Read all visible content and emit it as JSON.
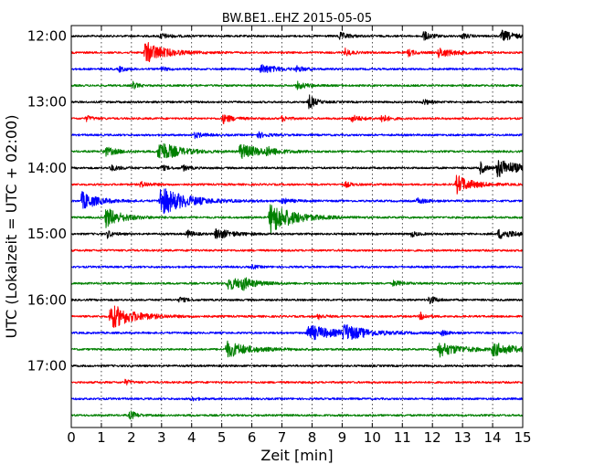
{
  "chart_data": {
    "type": "line",
    "subtype": "helicorder-dayplot",
    "title": "BW.BE1..EHZ 2015-05-05",
    "xlabel": "Zeit  [min]",
    "ylabel": "UTC (Lokalzeit = UTC + 02:00)",
    "xlim": [
      0,
      15
    ],
    "x_ticks": [
      "0",
      "1",
      "2",
      "3",
      "4",
      "5",
      "6",
      "7",
      "8",
      "9",
      "10",
      "11",
      "12",
      "13",
      "14",
      "15"
    ],
    "y_ticks": [
      {
        "label": "12:00",
        "row": 0
      },
      {
        "label": "13:00",
        "row": 4
      },
      {
        "label": "14:00",
        "row": 8
      },
      {
        "label": "15:00",
        "row": 12
      },
      {
        "label": "16:00",
        "row": 16
      },
      {
        "label": "17:00",
        "row": 20
      }
    ],
    "grid": {
      "vertical_dotted": true
    },
    "row_colors": [
      "#000000",
      "#ff0000",
      "#0000ff",
      "#008000"
    ],
    "rows": [
      {
        "start": "12:00",
        "events": [
          {
            "t": 2.95,
            "a": 3,
            "d": 0.3
          },
          {
            "t": 8.9,
            "a": 4,
            "d": 0.3
          },
          {
            "t": 11.7,
            "a": 5,
            "d": 0.25
          },
          {
            "t": 13.0,
            "a": 3,
            "d": 0.2
          },
          {
            "t": 14.3,
            "a": 6,
            "d": 0.4
          }
        ]
      },
      {
        "start": "12:15",
        "events": [
          {
            "t": 2.45,
            "a": 12,
            "d": 0.6
          },
          {
            "t": 9.1,
            "a": 4,
            "d": 0.2
          },
          {
            "t": 11.2,
            "a": 4,
            "d": 0.2
          },
          {
            "t": 12.2,
            "a": 5,
            "d": 0.5
          }
        ]
      },
      {
        "start": "12:30",
        "events": [
          {
            "t": 1.6,
            "a": 3,
            "d": 0.2
          },
          {
            "t": 3.0,
            "a": 2,
            "d": 0.2
          },
          {
            "t": 6.3,
            "a": 5,
            "d": 0.5
          },
          {
            "t": 7.5,
            "a": 3,
            "d": 0.2
          }
        ]
      },
      {
        "start": "12:45",
        "events": [
          {
            "t": 2.05,
            "a": 4,
            "d": 0.15
          },
          {
            "t": 7.5,
            "a": 4,
            "d": 0.3
          }
        ]
      },
      {
        "start": "13:00",
        "events": [
          {
            "t": 7.9,
            "a": 8,
            "d": 0.2
          },
          {
            "t": 11.7,
            "a": 3,
            "d": 0.2
          }
        ]
      },
      {
        "start": "13:15",
        "events": [
          {
            "t": 0.5,
            "a": 3,
            "d": 0.2
          },
          {
            "t": 5.05,
            "a": 5,
            "d": 0.3
          },
          {
            "t": 7.0,
            "a": 3,
            "d": 0.2
          },
          {
            "t": 9.3,
            "a": 4,
            "d": 0.3
          },
          {
            "t": 10.3,
            "a": 5,
            "d": 0.2
          }
        ]
      },
      {
        "start": "13:30",
        "events": [
          {
            "t": 4.1,
            "a": 3,
            "d": 0.3
          },
          {
            "t": 6.2,
            "a": 3,
            "d": 0.3
          }
        ]
      },
      {
        "start": "13:45",
        "events": [
          {
            "t": 1.1,
            "a": 5,
            "d": 0.4
          },
          {
            "t": 2.9,
            "a": 12,
            "d": 0.6
          },
          {
            "t": 5.6,
            "a": 8,
            "d": 0.7
          },
          {
            "t": 6.5,
            "a": 3,
            "d": 0.3
          }
        ]
      },
      {
        "start": "14:00",
        "events": [
          {
            "t": 1.3,
            "a": 3,
            "d": 0.3
          },
          {
            "t": 3.0,
            "a": 3,
            "d": 0.2
          },
          {
            "t": 3.7,
            "a": 3,
            "d": 0.2
          },
          {
            "t": 13.6,
            "a": 7,
            "d": 0.15
          },
          {
            "t": 14.15,
            "a": 10,
            "d": 0.7
          }
        ]
      },
      {
        "start": "14:15",
        "events": [
          {
            "t": 2.3,
            "a": 3,
            "d": 0.3
          },
          {
            "t": 9.1,
            "a": 3,
            "d": 0.2
          },
          {
            "t": 12.8,
            "a": 10,
            "d": 0.5
          }
        ]
      },
      {
        "start": "14:30",
        "events": [
          {
            "t": 0.35,
            "a": 10,
            "d": 0.5
          },
          {
            "t": 2.95,
            "a": 16,
            "d": 0.8
          },
          {
            "t": 7.0,
            "a": 3,
            "d": 0.3
          },
          {
            "t": 11.5,
            "a": 3,
            "d": 0.3
          }
        ]
      },
      {
        "start": "14:45",
        "events": [
          {
            "t": 1.15,
            "a": 11,
            "d": 0.5
          },
          {
            "t": 6.6,
            "a": 18,
            "d": 0.7
          }
        ]
      },
      {
        "start": "15:00",
        "events": [
          {
            "t": 1.2,
            "a": 4,
            "d": 0.2
          },
          {
            "t": 3.85,
            "a": 4,
            "d": 0.2
          },
          {
            "t": 4.8,
            "a": 6,
            "d": 0.5
          },
          {
            "t": 11.3,
            "a": 3,
            "d": 0.2
          },
          {
            "t": 14.2,
            "a": 5,
            "d": 0.6
          }
        ]
      },
      {
        "start": "15:15",
        "events": []
      },
      {
        "start": "15:30",
        "events": [
          {
            "t": 6.0,
            "a": 2,
            "d": 0.2
          }
        ]
      },
      {
        "start": "15:45",
        "events": [
          {
            "t": 5.2,
            "a": 7,
            "d": 0.6
          },
          {
            "t": 5.65,
            "a": 5,
            "d": 0.3
          },
          {
            "t": 10.7,
            "a": 3,
            "d": 0.3
          }
        ]
      },
      {
        "start": "16:00",
        "events": [
          {
            "t": 3.6,
            "a": 3,
            "d": 0.2
          },
          {
            "t": 11.9,
            "a": 5,
            "d": 0.2
          }
        ]
      },
      {
        "start": "16:15",
        "events": [
          {
            "t": 1.3,
            "a": 14,
            "d": 0.7
          },
          {
            "t": 8.2,
            "a": 3,
            "d": 0.2
          },
          {
            "t": 11.6,
            "a": 4,
            "d": 0.2
          }
        ]
      },
      {
        "start": "16:30",
        "events": [
          {
            "t": 7.85,
            "a": 9,
            "d": 0.8
          },
          {
            "t": 9.05,
            "a": 8,
            "d": 0.7
          },
          {
            "t": 12.3,
            "a": 3,
            "d": 0.2
          }
        ]
      },
      {
        "start": "16:45",
        "events": [
          {
            "t": 5.15,
            "a": 9,
            "d": 0.7
          },
          {
            "t": 12.2,
            "a": 8,
            "d": 0.7
          },
          {
            "t": 14.0,
            "a": 7,
            "d": 0.7
          }
        ]
      },
      {
        "start": "17:00",
        "events": []
      },
      {
        "start": "17:15",
        "events": [
          {
            "t": 1.8,
            "a": 3,
            "d": 0.15
          }
        ]
      },
      {
        "start": "17:30",
        "events": [
          {
            "t": 4.0,
            "a": 2,
            "d": 0.2
          }
        ]
      },
      {
        "start": "17:45",
        "events": [
          {
            "t": 1.95,
            "a": 5,
            "d": 0.2
          }
        ]
      }
    ]
  }
}
